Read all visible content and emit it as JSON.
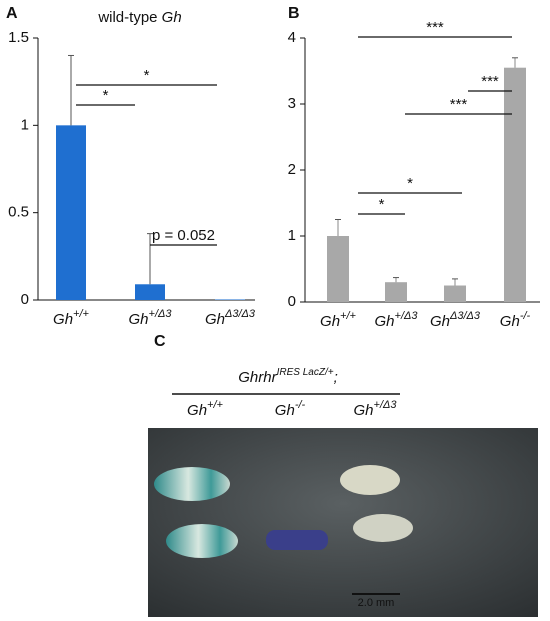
{
  "chart_data": [
    {
      "type": "bar",
      "panel": "A",
      "title": "wild-type Gh",
      "categories": [
        "Gh+/+",
        "Gh+/Δ3",
        "GhΔ3/Δ3"
      ],
      "values": [
        1,
        0.09,
        0.003
      ],
      "errors": [
        0.4,
        0.29,
        0
      ],
      "color": "#1f6fd0",
      "ylim": [
        0,
        1.5
      ],
      "yticks": [
        0,
        0.5,
        1,
        1.5
      ],
      "comparisons": [
        {
          "groups": [
            0,
            1
          ],
          "label": "*"
        },
        {
          "groups": [
            0,
            2
          ],
          "label": "*"
        },
        {
          "groups": [
            1,
            2
          ],
          "label": "p = 0.052"
        }
      ]
    },
    {
      "type": "bar",
      "panel": "B",
      "categories": [
        "Gh+/+",
        "Gh+/Δ3",
        "GhΔ3/Δ3",
        "Gh-/-"
      ],
      "values": [
        1,
        0.3,
        0.25,
        3.55
      ],
      "errors": [
        0.25,
        0.07,
        0.1,
        0.15
      ],
      "color": "#a8a8a8",
      "ylim": [
        0,
        4
      ],
      "yticks": [
        0,
        1,
        2,
        3,
        4
      ],
      "comparisons": [
        {
          "groups": [
            0,
            1
          ],
          "label": "*"
        },
        {
          "groups": [
            0,
            2
          ],
          "label": "*"
        },
        {
          "groups": [
            1,
            3
          ],
          "label": "***"
        },
        {
          "groups": [
            2,
            3
          ],
          "label": "***"
        },
        {
          "groups": [
            0,
            3
          ],
          "label": "***"
        }
      ]
    }
  ],
  "photo": {
    "panel": "C",
    "genotype": {
      "gene": "Ghrhr",
      "superscript": "IRES LacZ/+",
      "suffix": ";"
    },
    "columns": [
      "Gh+/+",
      "Gh-/-",
      "Gh+/Δ3"
    ],
    "scale_bar": "2.0 mm"
  }
}
